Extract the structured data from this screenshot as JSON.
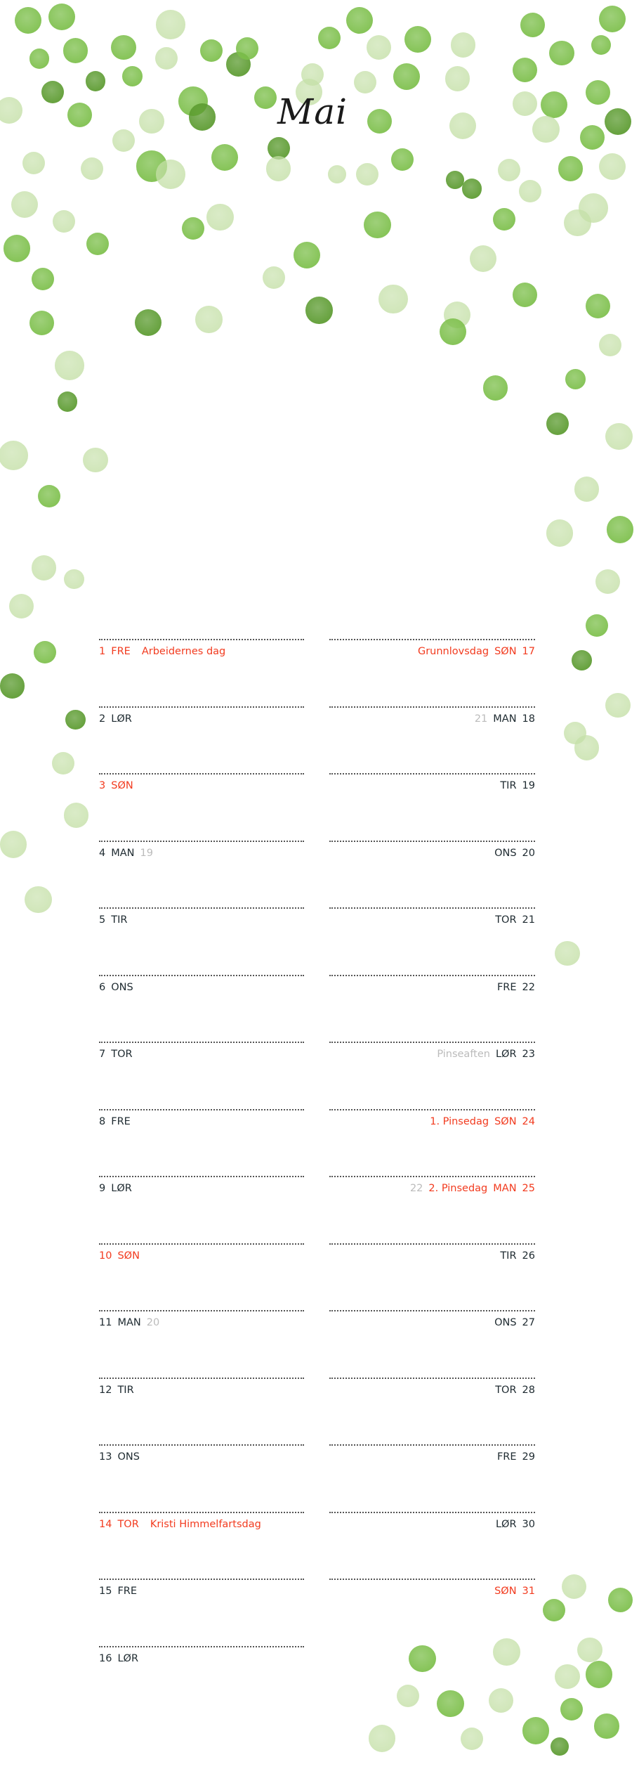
{
  "month_title": "Mai",
  "colors": {
    "holiday_red": "#f23b1f",
    "text_dark": "#1e2a30",
    "week_gray": "#bbbbbb",
    "dot_green": "#7cbf4a",
    "dot_dark": "#5a9a2e",
    "dot_light": "#c5e0a8"
  },
  "decoration": "green-watercolor-dots",
  "left_days": [
    {
      "day": "1",
      "weekday": "FRE",
      "note": "Arbeidernes dag",
      "red": true
    },
    {
      "day": "2",
      "weekday": "LØR"
    },
    {
      "day": "3",
      "weekday": "SØN",
      "red": true
    },
    {
      "day": "4",
      "weekday": "MAN",
      "week": "19"
    },
    {
      "day": "5",
      "weekday": "TIR"
    },
    {
      "day": "6",
      "weekday": "ONS"
    },
    {
      "day": "7",
      "weekday": "TOR"
    },
    {
      "day": "8",
      "weekday": "FRE"
    },
    {
      "day": "9",
      "weekday": "LØR"
    },
    {
      "day": "10",
      "weekday": "SØN",
      "red": true
    },
    {
      "day": "11",
      "weekday": "MAN",
      "week": "20"
    },
    {
      "day": "12",
      "weekday": "TIR"
    },
    {
      "day": "13",
      "weekday": "ONS"
    },
    {
      "day": "14",
      "weekday": "TOR",
      "note": "Kristi Himmelfartsdag",
      "red": true
    },
    {
      "day": "15",
      "weekday": "FRE"
    },
    {
      "day": "16",
      "weekday": "LØR"
    }
  ],
  "right_days": [
    {
      "day": "17",
      "weekday": "SØN",
      "note": "Grunnlovsdag",
      "red": true
    },
    {
      "day": "18",
      "weekday": "MAN",
      "week": "21"
    },
    {
      "day": "19",
      "weekday": "TIR"
    },
    {
      "day": "20",
      "weekday": "ONS"
    },
    {
      "day": "21",
      "weekday": "TOR"
    },
    {
      "day": "22",
      "weekday": "FRE"
    },
    {
      "day": "23",
      "weekday": "LØR",
      "note": "Pinseaften",
      "note_gray": true
    },
    {
      "day": "24",
      "weekday": "SØN",
      "note": "1. Pinsedag",
      "red": true
    },
    {
      "day": "25",
      "weekday": "MAN",
      "note": "2. Pinsedag",
      "week": "22",
      "red": true
    },
    {
      "day": "26",
      "weekday": "TIR"
    },
    {
      "day": "27",
      "weekday": "ONS"
    },
    {
      "day": "28",
      "weekday": "TOR"
    },
    {
      "day": "29",
      "weekday": "FRE"
    },
    {
      "day": "30",
      "weekday": "LØR"
    },
    {
      "day": "31",
      "weekday": "SØN",
      "red": true
    }
  ]
}
